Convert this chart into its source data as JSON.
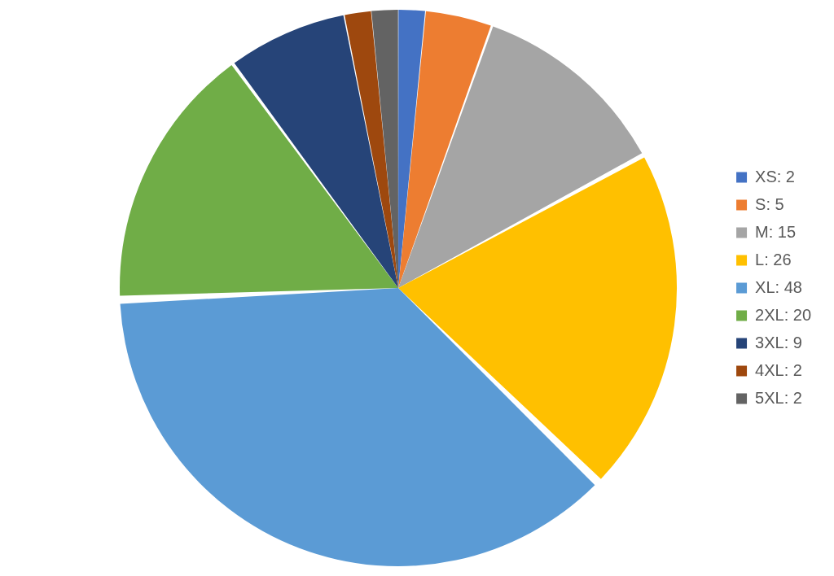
{
  "chart_data": {
    "type": "pie",
    "categories": [
      "XS: 2",
      "S: 5",
      "M: 15",
      "L: 26",
      "XL: 48",
      "2XL: 20",
      "3XL: 9",
      "4XL: 2",
      "5XL: 2"
    ],
    "values": [
      2,
      5,
      15,
      26,
      48,
      20,
      9,
      2,
      2
    ],
    "colors": [
      "#4472c4",
      "#ed7d31",
      "#a5a5a5",
      "#ffc000",
      "#5b9bd5",
      "#70ad47",
      "#264478",
      "#9e480e",
      "#636363"
    ],
    "legend": "right"
  }
}
